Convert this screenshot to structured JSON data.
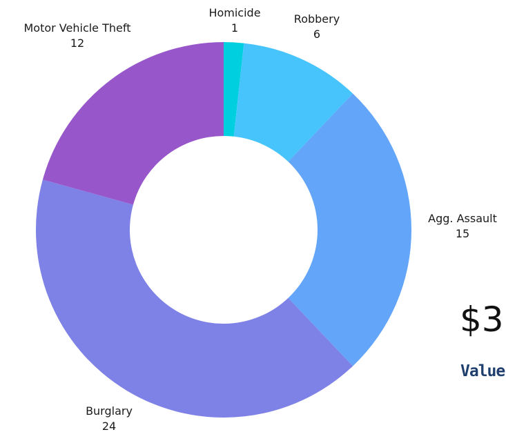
{
  "chart_data": {
    "type": "pie",
    "title": "",
    "categories": [
      "Homicide",
      "Robbery",
      "Agg. Assault",
      "Burglary",
      "Motor Vehicle Theft"
    ],
    "values": [
      1,
      6,
      15,
      24,
      12
    ],
    "colors": [
      "#00cfe0",
      "#48c4fd",
      "#63a5f9",
      "#7e81e6",
      "#9757cb"
    ],
    "legend": "none"
  },
  "card": {
    "value": "$3",
    "caption": "Value"
  }
}
